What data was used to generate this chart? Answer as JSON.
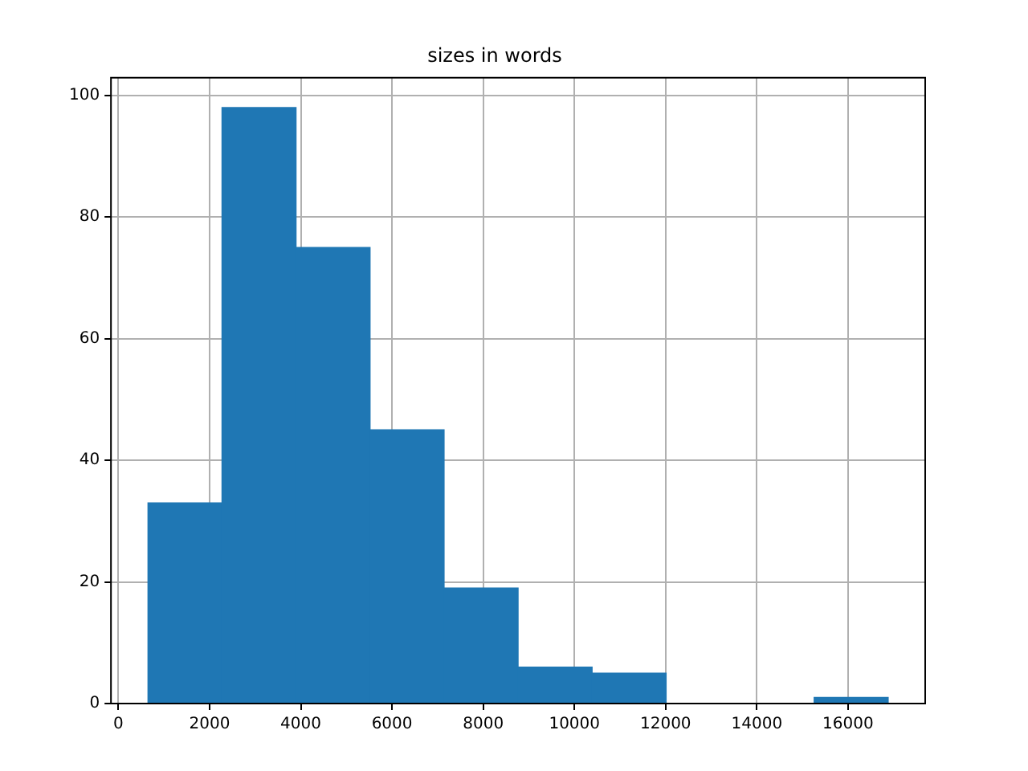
{
  "chart_data": {
    "type": "histogram",
    "title": "sizes in words",
    "bins": [
      650,
      2273,
      3896,
      5519,
      7142,
      8765,
      10388,
      12011,
      13634,
      15257,
      16880
    ],
    "values": [
      33,
      98,
      75,
      45,
      19,
      6,
      5,
      0,
      0,
      1
    ],
    "color": "#1f77b4",
    "xlim": [
      -162,
      17692
    ],
    "xticks": [
      0,
      2000,
      4000,
      6000,
      8000,
      10000,
      12000,
      14000,
      16000
    ],
    "ylim": [
      0,
      102.9
    ],
    "yticks": [
      0,
      20,
      40,
      60,
      80,
      100
    ],
    "grid": true
  }
}
